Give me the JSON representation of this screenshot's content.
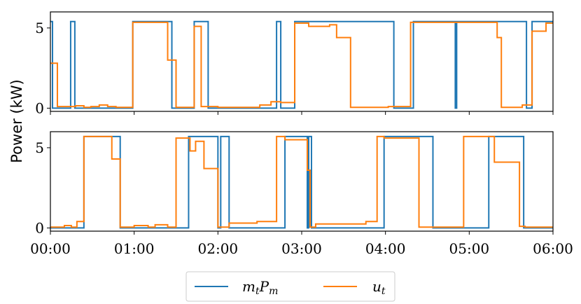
{
  "chart_data": {
    "type": "line",
    "ylabel": "Power (kW)",
    "x_ticks": [
      "00:00",
      "01:00",
      "02:00",
      "03:00",
      "04:00",
      "05:00",
      "06:00"
    ],
    "x_range_minutes": [
      0,
      360
    ],
    "legend": {
      "placement": "bottom-center",
      "entries": [
        {
          "label_main": "m",
          "label_sub": "t",
          "label_main2": "P",
          "label_sub2": "m",
          "color": "#1f77b4"
        },
        {
          "label_main": "u",
          "label_sub": "t",
          "label_main2": "",
          "label_sub2": "",
          "color": "#ff7f0e"
        }
      ]
    },
    "panels": [
      {
        "ylim": [
          -0.2,
          6
        ],
        "y_ticks": [
          "0",
          "5"
        ],
        "y_tick_values": [
          0,
          5
        ],
        "series": [
          {
            "key": "m_t P_m",
            "color": "#1f77b4",
            "x": [
              0,
              1.5,
              1.5,
              14.5,
              14.5,
              17.5,
              17.5,
              59,
              59,
              87,
              87,
              103,
              103,
              113,
              113,
              162,
              162,
              165,
              165,
              175,
              175,
              246,
              246,
              260,
              260,
              290,
              290,
              291,
              291,
              341,
              341,
              345,
              345,
              360
            ],
            "y": [
              5.4,
              5.4,
              0,
              0,
              5.4,
              5.4,
              0,
              0,
              5.4,
              5.4,
              0,
              0,
              5.4,
              5.4,
              0,
              0,
              5.4,
              5.4,
              0,
              0,
              5.4,
              5.4,
              0,
              0,
              5.4,
              5.4,
              0,
              0,
              5.4,
              5.4,
              0,
              0,
              5.4,
              5.4
            ]
          },
          {
            "key": "u_t",
            "color": "#ff7f0e",
            "x": [
              0,
              5,
              5,
              18,
              18,
              24,
              24,
              29,
              29,
              35,
              35,
              41,
              41,
              47,
              47,
              59,
              59,
              84,
              84,
              90,
              90,
              103,
              103,
              108,
              108,
              120,
              120,
              150,
              150,
              158,
              158,
              165,
              165,
              175,
              175,
              185,
              185,
              200,
              200,
              205,
              205,
              215,
              215,
              242,
              242,
              258,
              258,
              320,
              320,
              323,
              323,
              338,
              338,
              345,
              345,
              355,
              355,
              360
            ],
            "y": [
              2.8,
              2.8,
              0.1,
              0.1,
              0.15,
              0.15,
              0.05,
              0.05,
              0.1,
              0.1,
              0.2,
              0.2,
              0.1,
              0.1,
              0.05,
              0.05,
              5.35,
              5.35,
              3.0,
              3.0,
              0.05,
              0.05,
              5.1,
              5.1,
              0.1,
              0.1,
              0.05,
              0.05,
              0.2,
              0.2,
              0.4,
              0.4,
              0.35,
              0.35,
              5.3,
              5.3,
              5.1,
              5.1,
              5.2,
              5.2,
              4.4,
              4.4,
              0.05,
              0.05,
              0.1,
              0.1,
              5.35,
              5.35,
              4.4,
              4.4,
              0.05,
              0.05,
              0.2,
              0.2,
              4.8,
              4.8,
              5.3,
              5.3
            ]
          }
        ]
      },
      {
        "ylim": [
          -0.2,
          6
        ],
        "y_ticks": [
          "0",
          "5"
        ],
        "y_tick_values": [
          0,
          5
        ],
        "series": [
          {
            "key": "m_t P_m",
            "color": "#1f77b4",
            "x": [
              0,
              24,
              24,
              50,
              50,
              99,
              99,
              120,
              120,
              122,
              122,
              128,
              128,
              168,
              168,
              184,
              184,
              185,
              185,
              187,
              187,
              239,
              239,
              274,
              274,
              314,
              314,
              339,
              339,
              360
            ],
            "y": [
              0,
              0,
              5.7,
              5.7,
              0,
              0,
              5.7,
              5.7,
              0,
              0,
              5.7,
              5.7,
              0,
              0,
              5.7,
              5.7,
              0,
              0,
              5.7,
              5.7,
              0,
              0,
              5.7,
              5.7,
              0,
              0,
              5.7,
              5.7,
              0,
              0
            ]
          },
          {
            "key": "u_t",
            "color": "#ff7f0e",
            "x": [
              0,
              10,
              10,
              15,
              15,
              19,
              19,
              24,
              24,
              44,
              44,
              50,
              50,
              60,
              60,
              70,
              70,
              75,
              75,
              84,
              84,
              90,
              90,
              100,
              100,
              104,
              104,
              110,
              110,
              120,
              120,
              128,
              128,
              148,
              148,
              162,
              162,
              168,
              168,
              184,
              184,
              186,
              186,
              190,
              190,
              226,
              226,
              234,
              234,
              239,
              239,
              264,
              264,
              274,
              274,
              296,
              296,
              318,
              318,
              336,
              336,
              340,
              340,
              360
            ],
            "y": [
              0.05,
              0.05,
              0.15,
              0.15,
              0.05,
              0.05,
              0.4,
              0.4,
              5.7,
              5.7,
              4.3,
              4.3,
              0.05,
              0.05,
              0.15,
              0.15,
              0.05,
              0.05,
              0.2,
              0.2,
              0.05,
              0.05,
              5.6,
              5.6,
              4.8,
              4.8,
              5.4,
              5.4,
              3.7,
              3.7,
              0.05,
              0.05,
              0.3,
              0.3,
              0.4,
              0.4,
              5.7,
              5.7,
              5.5,
              5.5,
              3.6,
              3.6,
              0.05,
              0.05,
              0.25,
              0.25,
              0.4,
              0.4,
              5.7,
              5.7,
              5.6,
              5.6,
              0.05,
              0.05,
              0.05,
              0.05,
              5.7,
              5.7,
              4.1,
              4.1,
              0.1,
              0.1,
              0.05,
              0.05
            ]
          }
        ]
      }
    ]
  }
}
